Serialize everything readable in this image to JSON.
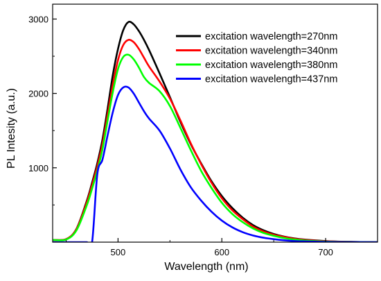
{
  "chart_data": {
    "type": "line",
    "xlabel": "Wavelength (nm)",
    "ylabel": "PL Intesity (a.u.)",
    "xlim": [
      437,
      750
    ],
    "ylim": [
      0,
      3200
    ],
    "xticks": [
      500,
      600,
      700
    ],
    "xtick_labels": [
      "500",
      "600",
      "700"
    ],
    "yticks": [
      1000,
      2000,
      3000
    ],
    "ytick_labels": [
      "1000",
      "2000",
      "3000"
    ],
    "grid": false,
    "legend_position": "top-right",
    "x": [
      437,
      450,
      460,
      470,
      475,
      480,
      485,
      490,
      495,
      500,
      505,
      510,
      515,
      520,
      525,
      530,
      540,
      550,
      560,
      570,
      580,
      590,
      600,
      610,
      620,
      630,
      640,
      650,
      660,
      670,
      680,
      700,
      720,
      750
    ],
    "series": [
      {
        "name": "excitation wavelength=270nm",
        "color": "#000000",
        "values": [
          30,
          40,
          180,
          560,
          800,
          1060,
          1380,
          1800,
          2250,
          2600,
          2850,
          2960,
          2930,
          2840,
          2720,
          2580,
          2270,
          1950,
          1620,
          1320,
          1060,
          820,
          620,
          460,
          330,
          230,
          160,
          110,
          75,
          50,
          35,
          15,
          5,
          0
        ]
      },
      {
        "name": "excitation wavelength=340nm",
        "color": "#ff0000",
        "values": [
          30,
          40,
          175,
          540,
          770,
          1020,
          1320,
          1720,
          2120,
          2450,
          2650,
          2720,
          2690,
          2600,
          2480,
          2360,
          2160,
          1930,
          1640,
          1330,
          1050,
          800,
          590,
          430,
          310,
          210,
          145,
          100,
          70,
          45,
          30,
          12,
          4,
          0
        ]
      },
      {
        "name": "excitation wavelength=380nm",
        "color": "#00ff00",
        "values": [
          30,
          35,
          160,
          500,
          720,
          960,
          1250,
          1640,
          2020,
          2330,
          2490,
          2520,
          2460,
          2350,
          2220,
          2140,
          2030,
          1830,
          1540,
          1240,
          960,
          730,
          530,
          380,
          270,
          185,
          125,
          85,
          55,
          35,
          22,
          8,
          3,
          0
        ]
      },
      {
        "name": "excitation wavelength=437nm",
        "color": "#0000ff",
        "values": [
          0,
          0,
          0,
          0,
          0,
          910,
          1110,
          1440,
          1750,
          1980,
          2080,
          2080,
          2000,
          1880,
          1760,
          1660,
          1500,
          1260,
          980,
          740,
          560,
          410,
          290,
          200,
          135,
          90,
          60,
          40,
          25,
          15,
          10,
          3,
          1,
          0
        ]
      }
    ]
  }
}
